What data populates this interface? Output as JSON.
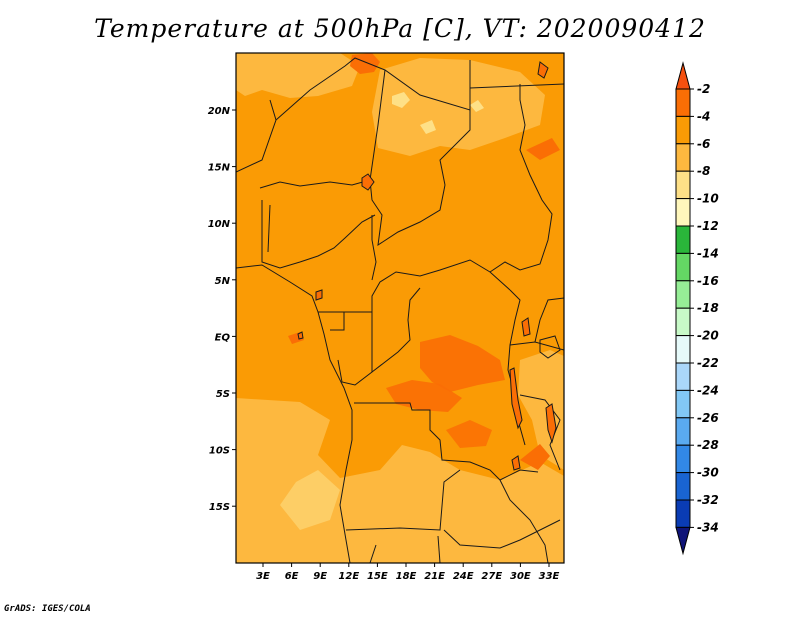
{
  "title": "Temperature at 500hPa [C], VT: 2020090412",
  "credit": "GrADS: IGES/COLA",
  "map": {
    "lat_labels": [
      "20N",
      "15N",
      "10N",
      "5N",
      "EQ",
      "5S",
      "10S",
      "15S"
    ],
    "lon_labels": [
      "3E",
      "6E",
      "9E",
      "12E",
      "15E",
      "18E",
      "21E",
      "24E",
      "27E",
      "30E",
      "33E"
    ]
  },
  "colorbar": {
    "labels": [
      "-2",
      "-4",
      "-6",
      "-8",
      "-10",
      "-12",
      "-14",
      "-16",
      "-18",
      "-20",
      "-22",
      "-24",
      "-26",
      "-28",
      "-30",
      "-32",
      "-34"
    ],
    "colors": [
      "#f5500f",
      "#fa6e05",
      "#fa9b05",
      "#fdb83f",
      "#fee087",
      "#fff7bc",
      "#2ab63a",
      "#64d764",
      "#96ee96",
      "#c8fac8",
      "#e6fafa",
      "#aad7fa",
      "#82c8f5",
      "#5aaaf0",
      "#3288e6",
      "#1964d2",
      "#0a3cb4",
      "#0f1478"
    ]
  },
  "colors": {
    "dominant_shade": "#fa9b05",
    "warm_shade": "#fdb83f",
    "hot_shade": "#fa6e05",
    "pale_shade": "#fee087",
    "border_lines": "#1a1a1a"
  }
}
